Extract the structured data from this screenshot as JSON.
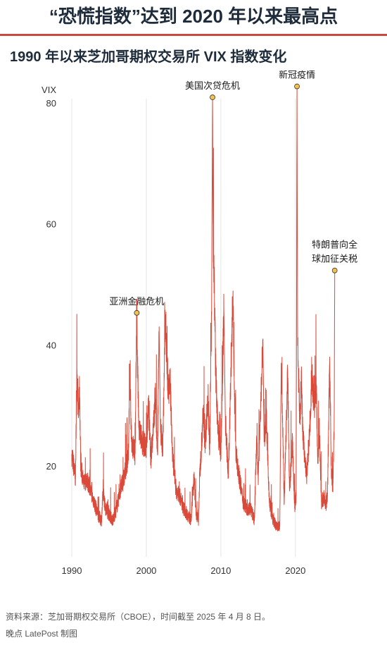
{
  "headline": "“恐慌指数”达到 2020 年以来最高点",
  "subheadline": "1990 年以来芝加哥期权交易所 VIX 指数变化",
  "footer": {
    "source": "资料来源：芝加哥期权交易所（CBOE），时间截至 2025 年 4 月 8 日。",
    "credit": "晚点 LatePost 制图"
  },
  "colors": {
    "line": "#d94a3a",
    "marker": "#f2c14e",
    "grid": "#e4e4e4",
    "rule": "#c84a3f"
  },
  "chart_data": {
    "type": "line",
    "title": "1990 年以来芝加哥期权交易所 VIX 指数变化",
    "ylabel": "VIX",
    "xlabel": "",
    "xlim": [
      1990,
      2025.3
    ],
    "ylim": [
      5,
      83
    ],
    "x_ticks": [
      1990,
      2000,
      2010,
      2020
    ],
    "y_ticks": [
      20,
      40,
      60,
      80
    ],
    "grid": "vertical",
    "series": [
      {
        "values": [
          [
            1990.0,
            22
          ],
          [
            1990.5,
            18
          ],
          [
            1990.6,
            28
          ],
          [
            1990.7,
            36
          ],
          [
            1990.9,
            28
          ],
          [
            1991.05,
            33
          ],
          [
            1991.2,
            20
          ],
          [
            1991.6,
            17
          ],
          [
            1992.0,
            18
          ],
          [
            1992.5,
            16
          ],
          [
            1993.0,
            14
          ],
          [
            1993.5,
            12
          ],
          [
            1994.0,
            11
          ],
          [
            1994.2,
            16
          ],
          [
            1994.5,
            13
          ],
          [
            1995.0,
            12
          ],
          [
            1995.5,
            11
          ],
          [
            1996.0,
            13
          ],
          [
            1996.5,
            16
          ],
          [
            1997.0,
            18
          ],
          [
            1997.6,
            22
          ],
          [
            1997.82,
            36
          ],
          [
            1998.0,
            24
          ],
          [
            1998.5,
            22
          ],
          [
            1998.72,
            45
          ],
          [
            1998.85,
            35
          ],
          [
            1999.0,
            26
          ],
          [
            1999.5,
            24
          ],
          [
            2000.0,
            23
          ],
          [
            2000.3,
            30
          ],
          [
            2000.6,
            21
          ],
          [
            2001.0,
            27
          ],
          [
            2001.2,
            32
          ],
          [
            2001.5,
            22
          ],
          [
            2001.72,
            43
          ],
          [
            2001.9,
            26
          ],
          [
            2002.2,
            23
          ],
          [
            2002.55,
            45
          ],
          [
            2002.8,
            36
          ],
          [
            2003.0,
            32
          ],
          [
            2003.2,
            34
          ],
          [
            2003.5,
            22
          ],
          [
            2004.0,
            16
          ],
          [
            2004.5,
            15
          ],
          [
            2005.0,
            13
          ],
          [
            2005.5,
            12
          ],
          [
            2006.0,
            11
          ],
          [
            2006.4,
            18
          ],
          [
            2006.7,
            12
          ],
          [
            2007.0,
            11
          ],
          [
            2007.15,
            18
          ],
          [
            2007.6,
            28
          ],
          [
            2007.9,
            24
          ],
          [
            2008.0,
            26
          ],
          [
            2008.3,
            32
          ],
          [
            2008.5,
            22
          ],
          [
            2008.75,
            45
          ],
          [
            2008.88,
            81
          ],
          [
            2008.95,
            60
          ],
          [
            2009.15,
            47
          ],
          [
            2009.3,
            36
          ],
          [
            2009.6,
            26
          ],
          [
            2010.0,
            22
          ],
          [
            2010.4,
            46
          ],
          [
            2010.6,
            28
          ],
          [
            2011.0,
            18
          ],
          [
            2011.6,
            48
          ],
          [
            2011.8,
            34
          ],
          [
            2012.0,
            22
          ],
          [
            2012.5,
            18
          ],
          [
            2013.0,
            14
          ],
          [
            2013.5,
            13
          ],
          [
            2014.0,
            13
          ],
          [
            2014.5,
            11
          ],
          [
            2014.8,
            25
          ],
          [
            2015.0,
            18
          ],
          [
            2015.64,
            41
          ],
          [
            2015.8,
            24
          ],
          [
            2016.1,
            28
          ],
          [
            2016.5,
            14
          ],
          [
            2017.0,
            11
          ],
          [
            2017.5,
            10
          ],
          [
            2017.9,
            10
          ],
          [
            2018.1,
            37
          ],
          [
            2018.5,
            14
          ],
          [
            2018.96,
            36
          ],
          [
            2019.2,
            16
          ],
          [
            2019.6,
            24
          ],
          [
            2019.9,
            13
          ],
          [
            2020.1,
            15
          ],
          [
            2020.21,
            82.7
          ],
          [
            2020.3,
            40
          ],
          [
            2020.6,
            27
          ],
          [
            2020.8,
            34
          ],
          [
            2021.0,
            25
          ],
          [
            2021.5,
            18
          ],
          [
            2022.0,
            28
          ],
          [
            2022.2,
            36
          ],
          [
            2022.5,
            30
          ],
          [
            2022.8,
            33
          ],
          [
            2023.0,
            21
          ],
          [
            2023.2,
            26
          ],
          [
            2023.5,
            14
          ],
          [
            2023.9,
            15
          ],
          [
            2024.0,
            13
          ],
          [
            2024.3,
            15
          ],
          [
            2024.6,
            38
          ],
          [
            2024.8,
            20
          ],
          [
            2025.0,
            16
          ],
          [
            2025.2,
            27
          ],
          [
            2025.27,
            52
          ]
        ]
      }
    ],
    "annotations": [
      {
        "label": "亚洲金融危机",
        "x": 1998.72,
        "y": 45.3
      },
      {
        "label": "美国次贷危机",
        "x": 2008.88,
        "y": 80.9
      },
      {
        "label": "新冠疫情",
        "x": 2020.21,
        "y": 82.7
      },
      {
        "label": "特朗普向全球加征关税",
        "x": 2025.27,
        "y": 52.3
      }
    ]
  }
}
